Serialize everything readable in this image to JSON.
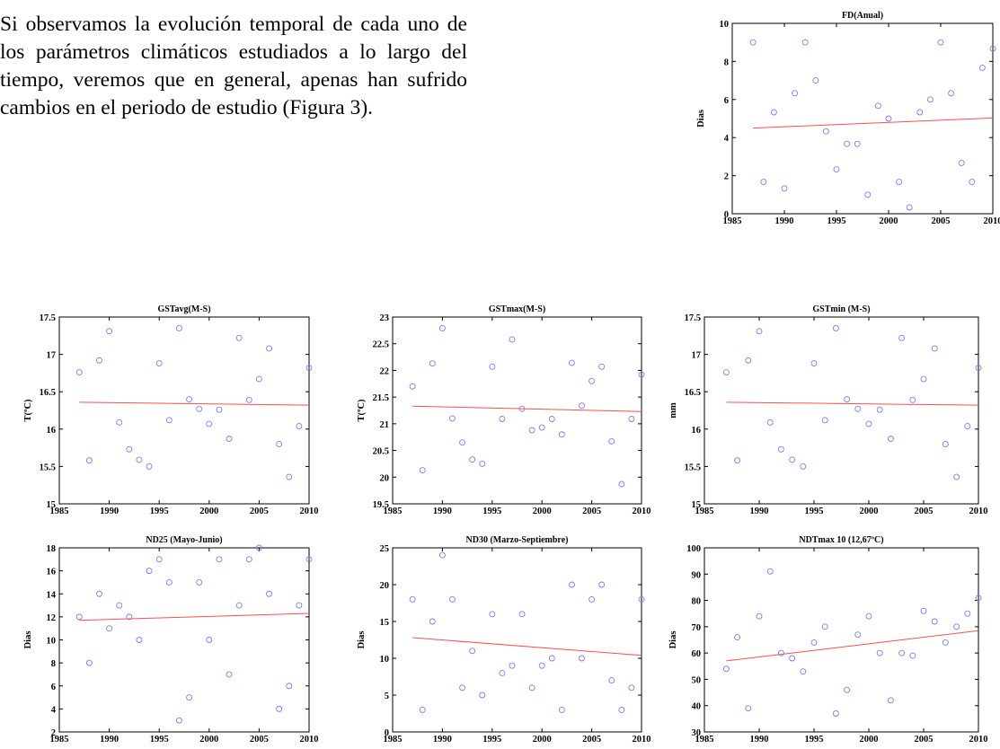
{
  "paragraph": "Si observamos la evolución temporal de cada uno de los parámetros climáticos estudiados a lo largo del tiempo, veremos que en general, apenas han sufrido cambios en el periodo de estudio (Figura 3).",
  "colors": {
    "points": "#7b7bff",
    "trend": "#ff4d4d",
    "axis": "#000000"
  },
  "chart_data": [
    {
      "type": "scatter",
      "title": "FD(Anual)",
      "ylabel": "Dias",
      "xlim": [
        1985,
        2010
      ],
      "ylim": [
        0,
        10
      ],
      "xticks": [
        1985,
        1990,
        1995,
        2000,
        2005,
        2010
      ],
      "yticks": [
        0,
        2,
        4,
        6,
        8,
        10
      ],
      "x": [
        1987,
        1988,
        1989,
        1990,
        1991,
        1992,
        1993,
        1994,
        1995,
        1996,
        1997,
        1998,
        1999,
        2000,
        2001,
        2002,
        2003,
        2004,
        2005,
        2006,
        2007,
        2008,
        2009,
        2010
      ],
      "y": [
        9,
        1.67,
        5.33,
        1.33,
        6.33,
        9,
        7,
        4.33,
        2.33,
        3.67,
        3.67,
        1,
        5.67,
        5,
        1.67,
        0.33,
        5.33,
        6,
        9,
        6.33,
        2.67,
        1.67,
        7.67,
        8.67
      ],
      "trend": [
        [
          1987,
          4.5
        ],
        [
          2010,
          5.03
        ]
      ]
    },
    {
      "type": "scatter",
      "title": "GSTavg(M-S)",
      "ylabel": "T(ºC)",
      "xlim": [
        1985,
        2010
      ],
      "ylim": [
        15,
        17.5
      ],
      "xticks": [
        1985,
        1990,
        1995,
        2000,
        2005,
        2010
      ],
      "yticks": [
        15,
        15.5,
        16,
        16.5,
        17,
        17.5
      ],
      "x": [
        1987,
        1988,
        1989,
        1990,
        1991,
        1992,
        1993,
        1994,
        1995,
        1996,
        1997,
        1998,
        1999,
        2000,
        2001,
        2002,
        2003,
        2004,
        2005,
        2006,
        2007,
        2008,
        2009,
        2010
      ],
      "y": [
        16.76,
        15.58,
        16.92,
        17.31,
        16.09,
        15.73,
        15.59,
        15.5,
        16.88,
        16.12,
        17.35,
        16.4,
        16.27,
        16.07,
        16.26,
        15.87,
        17.22,
        16.39,
        16.67,
        17.08,
        15.8,
        15.36,
        16.04,
        16.82
      ],
      "trend": [
        [
          1987,
          16.36
        ],
        [
          2010,
          16.32
        ]
      ]
    },
    {
      "type": "scatter",
      "title": "GSTmax(M-S)",
      "ylabel": "T(ºC)",
      "xlim": [
        1985,
        2010
      ],
      "ylim": [
        19.5,
        23
      ],
      "xticks": [
        1985,
        1990,
        1995,
        2000,
        2005,
        2010
      ],
      "yticks": [
        19.5,
        20,
        20.5,
        21,
        21.5,
        22,
        22.5,
        23
      ],
      "x": [
        1987,
        1988,
        1989,
        1990,
        1991,
        1992,
        1993,
        1994,
        1995,
        1996,
        1997,
        1998,
        1999,
        2000,
        2001,
        2002,
        2003,
        2004,
        2005,
        2006,
        2007,
        2008,
        2009,
        2010
      ],
      "y": [
        21.7,
        20.13,
        22.13,
        22.79,
        21.1,
        20.65,
        20.33,
        20.25,
        22.07,
        21.09,
        22.58,
        21.28,
        20.88,
        20.93,
        21.09,
        20.8,
        22.14,
        21.34,
        21.8,
        22.07,
        20.67,
        19.87,
        21.09,
        21.92
      ],
      "trend": [
        [
          1987,
          21.33
        ],
        [
          2010,
          21.23
        ]
      ]
    },
    {
      "type": "scatter",
      "title": "GSTmin (M-S)",
      "ylabel": "mm",
      "xlim": [
        1985,
        2010
      ],
      "ylim": [
        15,
        17.5
      ],
      "xticks": [
        1985,
        1990,
        1995,
        2000,
        2005,
        2010
      ],
      "yticks": [
        15,
        15.5,
        16,
        16.5,
        17,
        17.5
      ],
      "x": [
        1987,
        1988,
        1989,
        1990,
        1991,
        1992,
        1993,
        1994,
        1995,
        1996,
        1997,
        1998,
        1999,
        2000,
        2001,
        2002,
        2003,
        2004,
        2005,
        2006,
        2007,
        2008,
        2009,
        2010
      ],
      "y": [
        16.76,
        15.58,
        16.92,
        17.31,
        16.09,
        15.73,
        15.59,
        15.5,
        16.88,
        16.12,
        17.35,
        16.4,
        16.27,
        16.07,
        16.26,
        15.87,
        17.22,
        16.39,
        16.67,
        17.08,
        15.8,
        15.36,
        16.04,
        16.82
      ],
      "trend": [
        [
          1987,
          16.36
        ],
        [
          2010,
          16.32
        ]
      ]
    },
    {
      "type": "scatter",
      "title": "ND25 (Mayo-Junio)",
      "ylabel": "Dias",
      "xlim": [
        1985,
        2010
      ],
      "ylim": [
        2,
        18
      ],
      "xticks": [
        1985,
        1990,
        1995,
        2000,
        2005,
        2010
      ],
      "yticks": [
        2,
        4,
        6,
        8,
        10,
        12,
        14,
        16,
        18
      ],
      "x": [
        1987,
        1988,
        1989,
        1990,
        1991,
        1992,
        1993,
        1994,
        1995,
        1996,
        1997,
        1998,
        1999,
        2000,
        2001,
        2002,
        2003,
        2004,
        2005,
        2006,
        2007,
        2008,
        2009,
        2010
      ],
      "y": [
        12,
        8,
        14,
        11,
        13,
        12,
        10,
        16,
        17,
        15,
        3,
        5,
        15,
        10,
        17,
        7,
        13,
        17,
        18,
        14,
        4,
        6,
        13,
        17
      ],
      "trend": [
        [
          1987,
          11.7
        ],
        [
          2010,
          12.3
        ]
      ]
    },
    {
      "type": "scatter",
      "title": "ND30 (Marzo-Septiembre)",
      "ylabel": "Dias",
      "xlim": [
        1985,
        2010
      ],
      "ylim": [
        0,
        25
      ],
      "xticks": [
        1985,
        1990,
        1995,
        2000,
        2005,
        2010
      ],
      "yticks": [
        0,
        5,
        10,
        15,
        20,
        25
      ],
      "x": [
        1987,
        1988,
        1989,
        1990,
        1991,
        1992,
        1993,
        1994,
        1995,
        1996,
        1997,
        1998,
        1999,
        2000,
        2001,
        2002,
        2003,
        2004,
        2005,
        2006,
        2007,
        2008,
        2009,
        2010
      ],
      "y": [
        18,
        3,
        15,
        24,
        18,
        6,
        11,
        5,
        16,
        8,
        9,
        16,
        6,
        9,
        10,
        3,
        20,
        10,
        18,
        20,
        7,
        3,
        6,
        18
      ],
      "trend": [
        [
          1987,
          12.8
        ],
        [
          2010,
          10.4
        ]
      ]
    },
    {
      "type": "scatter",
      "title": "NDTmax 10 (12,67ºC)",
      "ylabel": "Dias",
      "xlim": [
        1985,
        2010
      ],
      "ylim": [
        30,
        100
      ],
      "xticks": [
        1985,
        1990,
        1995,
        2000,
        2005,
        2010
      ],
      "yticks": [
        30,
        40,
        50,
        60,
        70,
        80,
        90,
        100
      ],
      "x": [
        1987,
        1988,
        1989,
        1990,
        1991,
        1992,
        1993,
        1994,
        1995,
        1996,
        1997,
        1998,
        1999,
        2000,
        2001,
        2002,
        2003,
        2004,
        2005,
        2006,
        2007,
        2008,
        2009,
        2010
      ],
      "y": [
        54,
        66,
        39,
        74,
        91,
        60,
        58,
        53,
        64,
        70,
        37,
        46,
        67,
        74,
        60,
        42,
        60,
        59,
        76,
        72,
        64,
        70,
        75,
        81
      ],
      "trend": [
        [
          1987,
          57
        ],
        [
          2010,
          68.5
        ]
      ]
    }
  ]
}
